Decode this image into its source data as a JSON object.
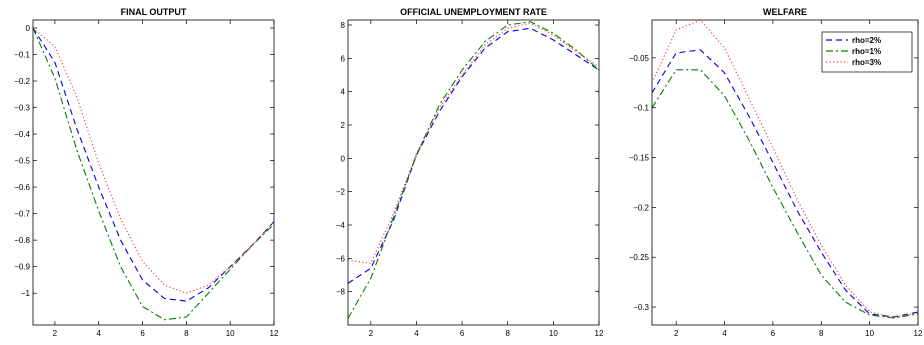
{
  "chart_data": [
    {
      "type": "line",
      "title": "FINAL OUTPUT",
      "xlabel": "",
      "ylabel": "",
      "xlim": [
        1,
        12
      ],
      "ylim": [
        -1.12,
        0.03
      ],
      "xticks": [
        2,
        4,
        6,
        8,
        10,
        12
      ],
      "yticks": [
        -1,
        -0.9,
        -0.8,
        -0.7,
        -0.6,
        -0.5,
        -0.4,
        -0.3,
        -0.2,
        -0.1,
        0
      ],
      "x": [
        1,
        2,
        3,
        4,
        5,
        6,
        7,
        8,
        9,
        10,
        11,
        12
      ],
      "grid": false,
      "series": [
        {
          "name": "rho=2%",
          "values": [
            0,
            -0.13,
            -0.38,
            -0.6,
            -0.8,
            -0.95,
            -1.02,
            -1.03,
            -0.98,
            -0.9,
            -0.82,
            -0.73
          ]
        },
        {
          "name": "rho=1%",
          "values": [
            0,
            -0.19,
            -0.46,
            -0.69,
            -0.9,
            -1.05,
            -1.1,
            -1.09,
            -1.0,
            -0.91,
            -0.82,
            -0.74
          ]
        },
        {
          "name": "rho=3%",
          "values": [
            0,
            -0.07,
            -0.26,
            -0.51,
            -0.72,
            -0.88,
            -0.97,
            -1.0,
            -0.97,
            -0.9,
            -0.82,
            -0.73
          ]
        }
      ]
    },
    {
      "type": "line",
      "title": "OFFICIAL UNEMPLOYMENT RATE",
      "xlabel": "",
      "ylabel": "",
      "xlim": [
        1,
        12
      ],
      "ylim": [
        -10,
        8.3
      ],
      "xticks": [
        2,
        4,
        6,
        8,
        10,
        12
      ],
      "yticks": [
        -8,
        -6,
        -4,
        -2,
        0,
        2,
        4,
        6,
        8
      ],
      "x": [
        1,
        2,
        3,
        4,
        5,
        6,
        7,
        8,
        9,
        10,
        11,
        12
      ],
      "grid": false,
      "series": [
        {
          "name": "rho=2%",
          "values": [
            -7.5,
            -6.6,
            -3.7,
            0.2,
            2.8,
            4.9,
            6.6,
            7.6,
            7.8,
            7.1,
            6.2,
            5.3
          ]
        },
        {
          "name": "rho=1%",
          "values": [
            -9.6,
            -7.2,
            -3.5,
            0.2,
            3.2,
            5.3,
            7.0,
            8.0,
            8.2,
            7.5,
            6.5,
            5.3
          ]
        },
        {
          "name": "rho=3%",
          "values": [
            -6.1,
            -6.3,
            -3.3,
            0.3,
            3.0,
            5.0,
            6.8,
            7.8,
            8.1,
            7.4,
            6.4,
            5.5
          ]
        }
      ]
    },
    {
      "type": "line",
      "title": "WELFARE",
      "xlabel": "",
      "ylabel": "",
      "xlim": [
        1,
        12
      ],
      "ylim": [
        -0.318,
        -0.012
      ],
      "xticks": [
        2,
        4,
        6,
        8,
        10,
        12
      ],
      "yticks": [
        -0.3,
        -0.25,
        -0.2,
        -0.15,
        -0.1,
        -0.05
      ],
      "x": [
        1,
        2,
        3,
        4,
        5,
        6,
        7,
        8,
        9,
        10,
        11,
        12
      ],
      "grid": false,
      "legend": {
        "position": "top-right",
        "entries": [
          "rho=2%",
          "rho=1%",
          "rho=3%"
        ]
      },
      "series": [
        {
          "name": "rho=2%",
          "values": [
            -0.085,
            -0.045,
            -0.042,
            -0.065,
            -0.108,
            -0.155,
            -0.203,
            -0.245,
            -0.283,
            -0.307,
            -0.31,
            -0.305
          ]
        },
        {
          "name": "rho=1%",
          "values": [
            -0.1,
            -0.062,
            -0.062,
            -0.088,
            -0.132,
            -0.18,
            -0.225,
            -0.268,
            -0.295,
            -0.308,
            -0.311,
            -0.307
          ]
        },
        {
          "name": "rho=3%",
          "values": [
            -0.075,
            -0.022,
            -0.012,
            -0.04,
            -0.09,
            -0.14,
            -0.192,
            -0.238,
            -0.278,
            -0.305,
            -0.31,
            -0.306
          ]
        }
      ]
    }
  ],
  "styles": {
    "series_colors": [
      "#0000ee",
      "#008000",
      "#ff3333"
    ],
    "series_dashes": [
      "6,4",
      "7,3,2,3",
      "1.2,2.4"
    ]
  }
}
